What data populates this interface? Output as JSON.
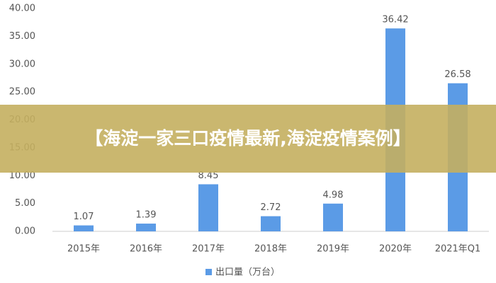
{
  "chart_data": {
    "type": "bar",
    "title": "【海淀一家三口疫情最新,海淀疫情案例】",
    "categories": [
      "2015年",
      "2016年",
      "2017年",
      "2018年",
      "2019年",
      "2020年",
      "2021年Q1"
    ],
    "series": [
      {
        "name": "出口量（万台）",
        "color": "#5b9be6",
        "values": [
          1.07,
          1.39,
          8.45,
          2.72,
          4.98,
          36.42,
          26.58
        ]
      }
    ],
    "ylim": [
      0,
      40
    ],
    "yticks": [
      {
        "value": 0,
        "label": "0.00"
      },
      {
        "value": 5,
        "label": "5.00"
      },
      {
        "value": 10,
        "label": "10.00"
      },
      {
        "value": 15,
        "label": "15.00"
      },
      {
        "value": 20,
        "label": "20.00"
      },
      {
        "value": 25,
        "label": "25.00"
      },
      {
        "value": 30,
        "label": "30.00"
      },
      {
        "value": 35,
        "label": "35.00"
      },
      {
        "value": 40,
        "label": "40.00"
      }
    ],
    "grid": false,
    "legend": "bottom"
  }
}
